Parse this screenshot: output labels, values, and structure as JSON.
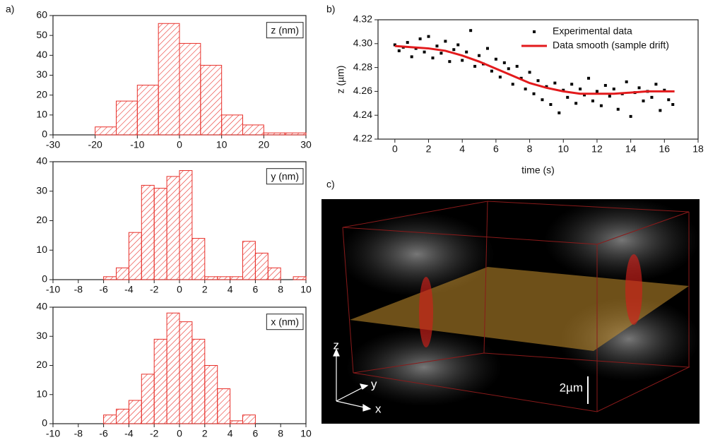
{
  "panels": {
    "a": "a)",
    "b": "b)",
    "c": "c)"
  },
  "render": {
    "axis_labels": {
      "z": "z",
      "y": "y",
      "x": "x"
    },
    "scale_bar": "2µm"
  },
  "chart_data": [
    {
      "type": "histogram",
      "label": "z (nm)",
      "color": "#e8302a",
      "bins": [
        -20,
        -15,
        -10,
        -5,
        0,
        5,
        10,
        15,
        20,
        25,
        30
      ],
      "values": [
        4,
        17,
        25,
        56,
        46,
        35,
        10,
        5,
        1,
        1
      ],
      "xlim": [
        -30,
        30
      ],
      "xticks": [
        -30,
        -20,
        -10,
        0,
        10,
        20,
        30
      ],
      "ylim": [
        0,
        60
      ],
      "yticks": [
        0,
        10,
        20,
        30,
        40,
        50,
        60
      ]
    },
    {
      "type": "histogram",
      "label": "y (nm)",
      "color": "#e8302a",
      "bins": [
        -6,
        -5,
        -4,
        -3,
        -2,
        -1,
        0,
        1,
        2,
        3,
        4,
        5,
        6,
        7,
        8,
        9,
        10
      ],
      "values": [
        1,
        4,
        16,
        32,
        31,
        35,
        37,
        14,
        1,
        1,
        1,
        13,
        9,
        4,
        0,
        1
      ],
      "xlim": [
        -10,
        10
      ],
      "xticks": [
        -10,
        -8,
        -6,
        -4,
        -2,
        0,
        2,
        4,
        6,
        8,
        10
      ],
      "ylim": [
        0,
        40
      ],
      "yticks": [
        0,
        10,
        20,
        30,
        40
      ]
    },
    {
      "type": "histogram",
      "label": "x (nm)",
      "color": "#e8302a",
      "bins": [
        -6,
        -5,
        -4,
        -3,
        -2,
        -1,
        0,
        1,
        2,
        3,
        4,
        5,
        6
      ],
      "values": [
        3,
        5,
        8,
        17,
        29,
        38,
        35,
        29,
        20,
        12,
        1,
        3
      ],
      "xlim": [
        -10,
        10
      ],
      "xticks": [
        -10,
        -8,
        -6,
        -4,
        -2,
        0,
        2,
        4,
        6,
        8,
        10
      ],
      "ylim": [
        0,
        40
      ],
      "yticks": [
        0,
        10,
        20,
        30,
        40
      ]
    },
    {
      "type": "scatter",
      "x_label": "time (s)",
      "y_label": "z (µm)",
      "legend": "upper right",
      "xlim": [
        -1,
        18
      ],
      "xticks": [
        0,
        2,
        4,
        6,
        8,
        10,
        12,
        14,
        16,
        18
      ],
      "ylim": [
        4.22,
        4.32
      ],
      "yticks": [
        4.22,
        4.24,
        4.26,
        4.28,
        {
          "value": 4.3,
          "label": "4.30"
        },
        4.32
      ],
      "series": [
        {
          "name": "Experimental data",
          "color": "#000000",
          "mode": "markers",
          "x": [
            0,
            0.25,
            0.5,
            0.75,
            1,
            1.25,
            1.5,
            1.75,
            2,
            2.25,
            2.5,
            2.75,
            3,
            3.25,
            3.5,
            3.75,
            4,
            4.25,
            4.5,
            4.75,
            5,
            5.25,
            5.5,
            5.75,
            6,
            6.25,
            6.5,
            6.75,
            7,
            7.25,
            7.5,
            7.75,
            8,
            8.25,
            8.5,
            8.75,
            9,
            9.25,
            9.5,
            9.75,
            10,
            10.25,
            10.5,
            10.75,
            11,
            11.25,
            11.5,
            11.75,
            12,
            12.25,
            12.5,
            12.75,
            13,
            13.25,
            13.5,
            13.75,
            14,
            14.25,
            14.5,
            14.75,
            15,
            15.25,
            15.5,
            15.75,
            16,
            16.25,
            16.5
          ],
          "values": [
            4.299,
            4.294,
            4.297,
            4.301,
            4.289,
            4.296,
            4.304,
            4.293,
            4.306,
            4.288,
            4.298,
            4.292,
            4.302,
            4.285,
            4.295,
            4.299,
            4.286,
            4.293,
            4.311,
            4.281,
            4.29,
            4.283,
            4.296,
            4.277,
            4.287,
            4.272,
            4.284,
            4.279,
            4.266,
            4.281,
            4.271,
            4.262,
            4.276,
            4.258,
            4.269,
            4.253,
            4.264,
            4.249,
            4.267,
            4.242,
            4.261,
            4.255,
            4.266,
            4.25,
            4.262,
            4.257,
            4.271,
            4.252,
            4.26,
            4.248,
            4.265,
            4.256,
            4.262,
            4.245,
            4.258,
            4.268,
            4.239,
            4.259,
            4.263,
            4.252,
            4.26,
            4.255,
            4.266,
            4.244,
            4.261,
            4.253,
            4.249
          ]
        },
        {
          "name": "Data smooth (sample drift)",
          "color": "#e31a1c",
          "mode": "line",
          "x": [
            0,
            1,
            2,
            3,
            4,
            5,
            6,
            7,
            8,
            9,
            10,
            11,
            12,
            13,
            14,
            15,
            16,
            16.6
          ],
          "values": [
            4.298,
            4.297,
            4.296,
            4.294,
            4.29,
            4.285,
            4.279,
            4.273,
            4.267,
            4.263,
            4.26,
            4.258,
            4.258,
            4.258,
            4.259,
            4.26,
            4.26,
            4.26
          ]
        }
      ]
    }
  ]
}
